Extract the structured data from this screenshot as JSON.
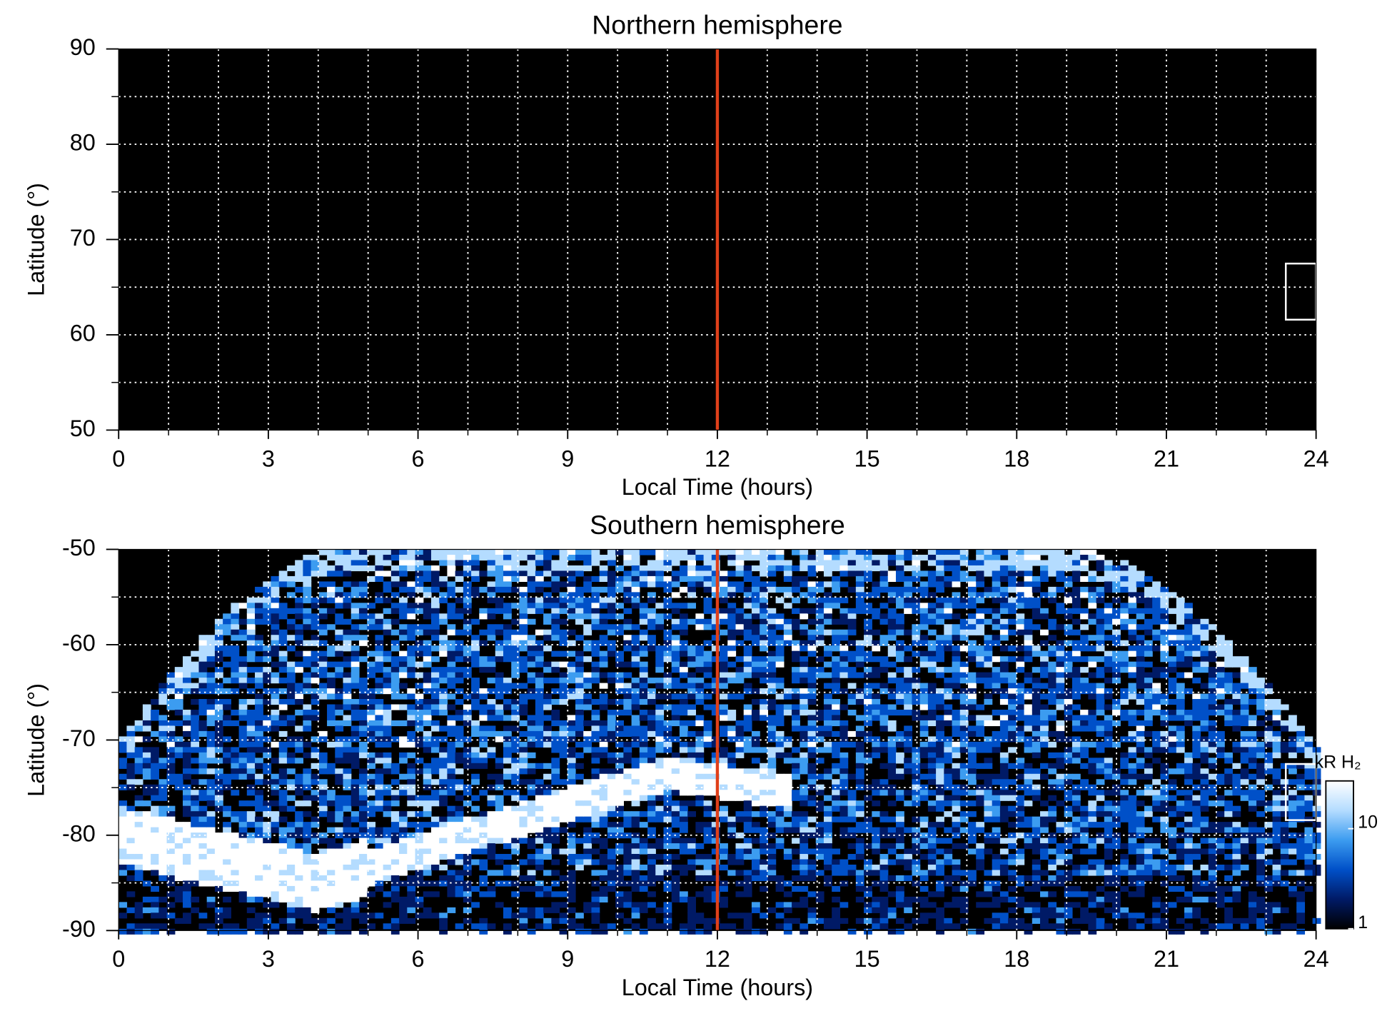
{
  "chart_data": [
    {
      "type": "heatmap",
      "title": "Northern hemisphere",
      "x_label": "Local Time (hours)",
      "y_label": "Latitude (°)",
      "xlim": [
        0,
        24
      ],
      "xticks": [
        0,
        3,
        6,
        9,
        12,
        15,
        18,
        21,
        24
      ],
      "x_minor_ticks": [
        1,
        2,
        4,
        5,
        7,
        8,
        10,
        11,
        13,
        14,
        16,
        17,
        19,
        20,
        22,
        23
      ],
      "ylim": [
        50,
        90
      ],
      "yticks": [
        50,
        60,
        70,
        80,
        90
      ],
      "y_minor_ticks": [
        55,
        65,
        75,
        85
      ],
      "grid": true,
      "marker_x": 12,
      "marker_color": "#e0401a"
    },
    {
      "type": "heatmap",
      "title": "Southern hemisphere",
      "x_label": "Local Time (hours)",
      "y_label": "Latitude (°)",
      "xlim": [
        0,
        24
      ],
      "xticks": [
        0,
        3,
        6,
        9,
        12,
        15,
        18,
        21,
        24
      ],
      "x_minor_ticks": [
        1,
        2,
        4,
        5,
        7,
        8,
        10,
        11,
        13,
        14,
        16,
        17,
        19,
        20,
        22,
        23
      ],
      "ylim": [
        -90,
        -50
      ],
      "yticks": [
        -90,
        -80,
        -70,
        -60,
        -50
      ],
      "y_minor_ticks": [
        -85,
        -75,
        -65,
        -55
      ],
      "grid": true,
      "marker_x": 12,
      "marker_color": "#e0401a",
      "colorbar": {
        "label": "kR H₂",
        "scale": "log",
        "lim": [
          1,
          30
        ],
        "ticks": [
          1,
          10
        ],
        "colors": [
          "#000000",
          "#001a66",
          "#0050c8",
          "#3c9cf0",
          "#b4dcff",
          "#ffffff"
        ]
      }
    }
  ]
}
